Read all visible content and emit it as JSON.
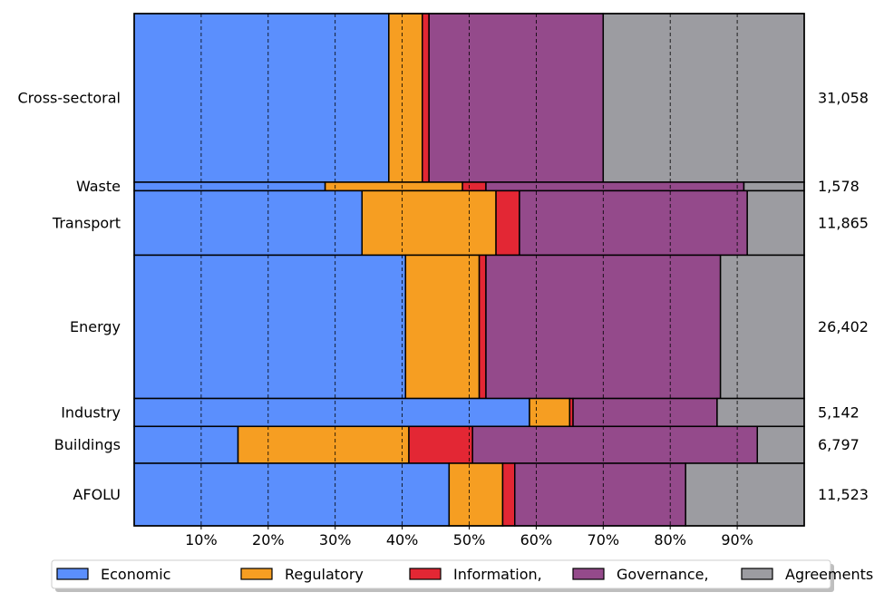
{
  "chart_data": {
    "type": "bar",
    "orientation": "horizontal",
    "variant": "mosaic",
    "xlim": [
      0,
      100
    ],
    "x_ticks": [
      "10%",
      "20%",
      "30%",
      "40%",
      "50%",
      "60%",
      "70%",
      "80%",
      "90%"
    ],
    "grid": "vertical dashed",
    "legend_position": "bottom",
    "categories": [
      "Cross-sectoral",
      "Waste",
      "Transport",
      "Energy",
      "Industry",
      "Buildings",
      "AFOLU"
    ],
    "totals": [
      31058,
      1578,
      11865,
      26402,
      5142,
      6797,
      11523
    ],
    "total_labels": [
      "31,058",
      "1,578",
      "11,865",
      "26,402",
      "5,142",
      "6,797",
      "11,523"
    ],
    "series": [
      {
        "name": "Economic",
        "color": "#5b8ffd",
        "values": [
          38,
          28.5,
          34,
          40.5,
          59,
          15.5,
          47
        ]
      },
      {
        "name": "Regulatory",
        "color": "#f69e22",
        "values": [
          5,
          20.5,
          20,
          11,
          6,
          25.5,
          8
        ]
      },
      {
        "name": "Information,",
        "color": "#e32734",
        "values": [
          1,
          3.5,
          3.5,
          1,
          0.5,
          9.5,
          1.8
        ]
      },
      {
        "name": "Governance,",
        "color": "#944a8b",
        "values": [
          26,
          38.5,
          34,
          35,
          21.5,
          42.5,
          25.5
        ]
      },
      {
        "name": "Agreements",
        "color": "#9c9ca1",
        "values": [
          30,
          9,
          8.5,
          12.5,
          13,
          7,
          17.7
        ]
      }
    ]
  }
}
